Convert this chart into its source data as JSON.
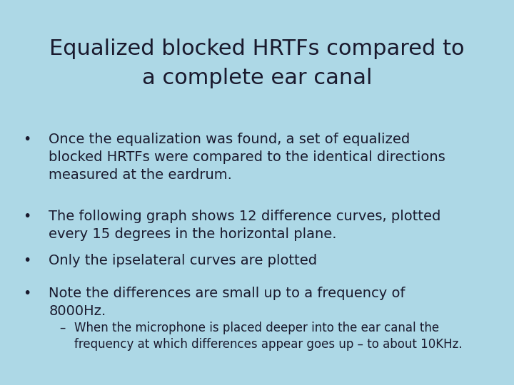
{
  "title_line1": "Equalized blocked HRTFs compared to",
  "title_line2": "a complete ear canal",
  "background_color": "#ADD8E6",
  "text_color": "#1a1a2e",
  "title_fontsize": 22,
  "body_fontsize": 14,
  "sub_fontsize": 12,
  "bullet1": "Once the equalization was found, a set of equalized\nblocked HRTFs were compared to the identical directions\nmeasured at the eardrum.",
  "bullet2": "The following graph shows 12 difference curves, plotted\nevery 15 degrees in the horizontal plane.",
  "bullet3": "Only the ipselateral curves are plotted",
  "bullet4": "Note the differences are small up to a frequency of\n8000Hz.",
  "sub_bullet": "When the microphone is placed deeper into the ear canal the\nfrequency at which differences appear goes up – to about 10KHz."
}
